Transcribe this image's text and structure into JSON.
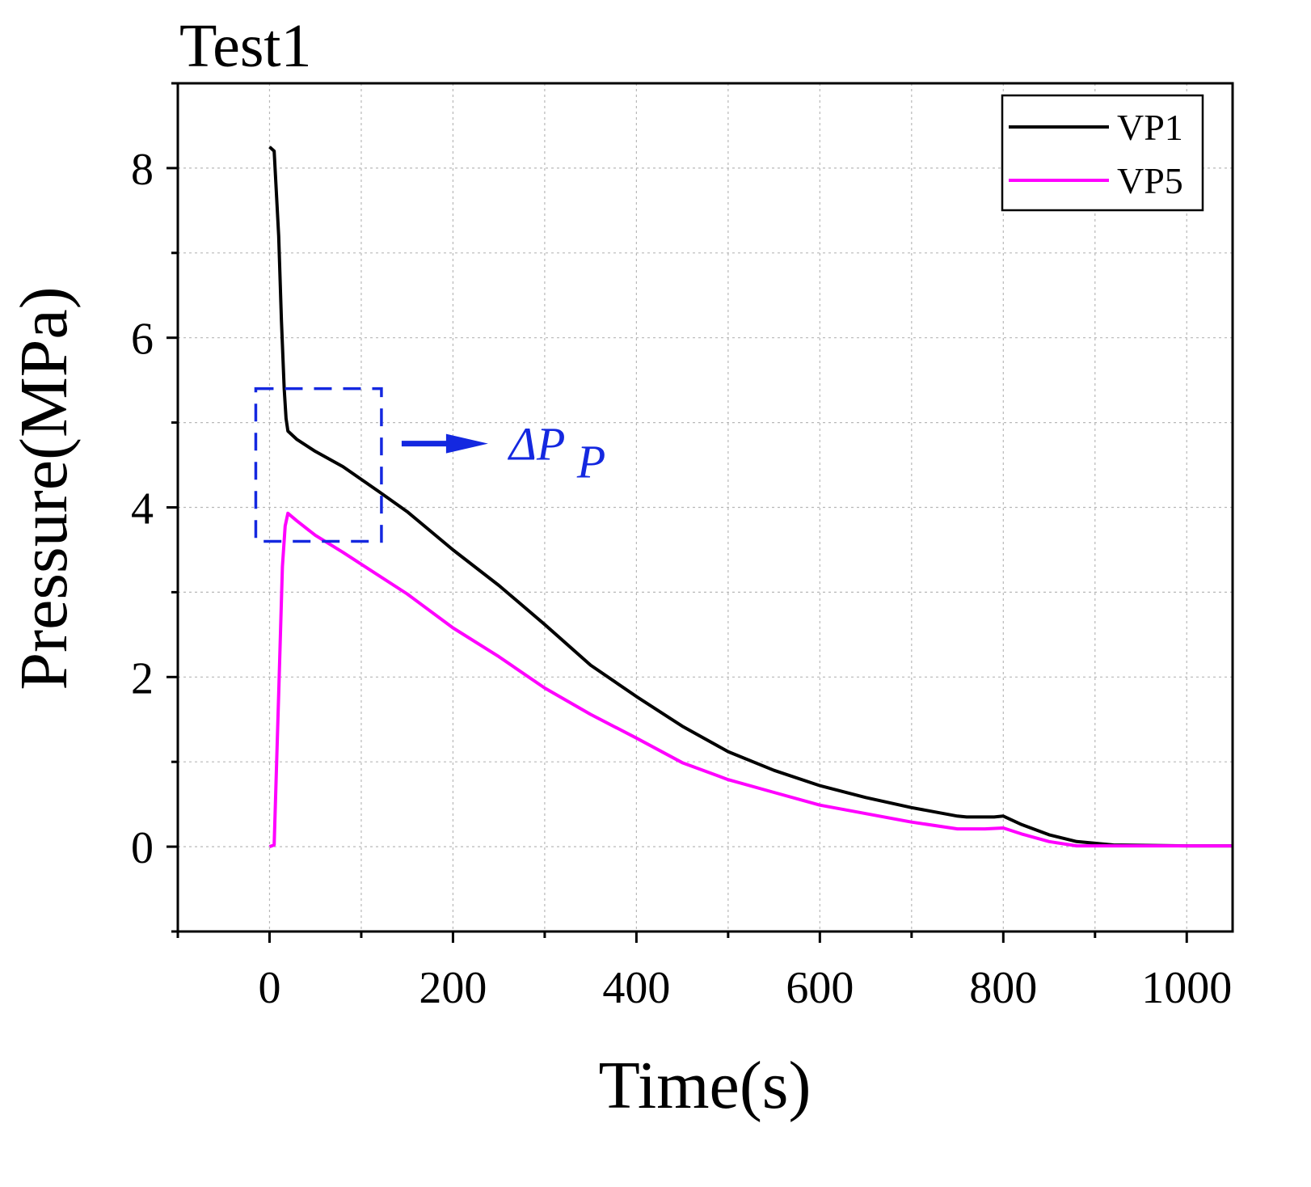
{
  "chart_data": {
    "type": "line",
    "title": "Test1",
    "xlabel": "Time(s)",
    "ylabel": "Pressure(MPa)",
    "xlim": [
      -100,
      1050
    ],
    "ylim": [
      -1,
      9
    ],
    "xticks": [
      0,
      200,
      400,
      600,
      800,
      1000
    ],
    "yticks": [
      0,
      2,
      4,
      6,
      8
    ],
    "grid": true,
    "legend_position": "top-right",
    "series": [
      {
        "name": "VP1",
        "color": "#000000",
        "points": [
          [
            0,
            8.25
          ],
          [
            5,
            8.2
          ],
          [
            10,
            7.2
          ],
          [
            13,
            6.2
          ],
          [
            16,
            5.4
          ],
          [
            18,
            5.05
          ],
          [
            20,
            4.9
          ],
          [
            30,
            4.8
          ],
          [
            50,
            4.66
          ],
          [
            80,
            4.48
          ],
          [
            100,
            4.33
          ],
          [
            120,
            4.18
          ],
          [
            150,
            3.95
          ],
          [
            200,
            3.5
          ],
          [
            250,
            3.08
          ],
          [
            300,
            2.62
          ],
          [
            350,
            2.14
          ],
          [
            400,
            1.77
          ],
          [
            450,
            1.42
          ],
          [
            500,
            1.12
          ],
          [
            550,
            0.9
          ],
          [
            600,
            0.72
          ],
          [
            650,
            0.58
          ],
          [
            700,
            0.46
          ],
          [
            750,
            0.36
          ],
          [
            760,
            0.35
          ],
          [
            770,
            0.35
          ],
          [
            790,
            0.35
          ],
          [
            800,
            0.36
          ],
          [
            820,
            0.26
          ],
          [
            850,
            0.14
          ],
          [
            880,
            0.06
          ],
          [
            920,
            0.02
          ],
          [
            1000,
            0.01
          ],
          [
            1050,
            0.01
          ]
        ]
      },
      {
        "name": "VP5",
        "color": "#ff00ff",
        "points": [
          [
            0,
            0.0
          ],
          [
            5,
            0.02
          ],
          [
            10,
            1.8
          ],
          [
            14,
            3.3
          ],
          [
            17,
            3.78
          ],
          [
            20,
            3.93
          ],
          [
            30,
            3.84
          ],
          [
            50,
            3.67
          ],
          [
            80,
            3.47
          ],
          [
            100,
            3.33
          ],
          [
            150,
            2.98
          ],
          [
            200,
            2.58
          ],
          [
            250,
            2.24
          ],
          [
            300,
            1.87
          ],
          [
            350,
            1.56
          ],
          [
            400,
            1.28
          ],
          [
            450,
            0.99
          ],
          [
            500,
            0.79
          ],
          [
            550,
            0.64
          ],
          [
            600,
            0.49
          ],
          [
            650,
            0.39
          ],
          [
            700,
            0.29
          ],
          [
            750,
            0.21
          ],
          [
            780,
            0.21
          ],
          [
            800,
            0.22
          ],
          [
            820,
            0.15
          ],
          [
            850,
            0.06
          ],
          [
            880,
            0.01
          ],
          [
            950,
            0.01
          ],
          [
            1050,
            0.01
          ]
        ]
      }
    ],
    "annotation": {
      "label": "ΔP",
      "subscript": "P",
      "color": "#1428e0",
      "box_x": [
        -15,
        122
      ],
      "box_y": [
        3.6,
        5.4
      ]
    }
  }
}
